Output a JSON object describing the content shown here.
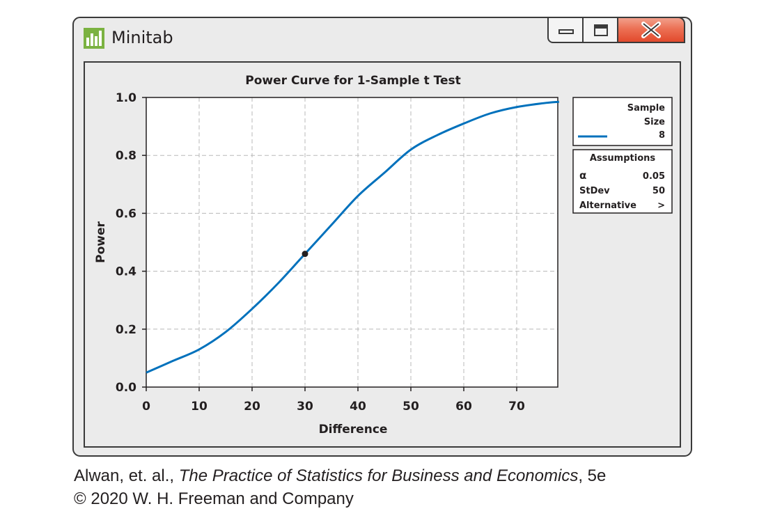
{
  "window": {
    "app_title": "Minitab",
    "controls": {
      "minimize": "minimize-icon",
      "maximize": "maximize-icon",
      "close": "close-icon"
    },
    "colors": {
      "close_button": "#e24a2d",
      "frame": "#3a3a3a",
      "background": "#ebebeb"
    }
  },
  "chart_data": {
    "type": "line",
    "title": "Power Curve for 1-Sample t Test",
    "xlabel": "Difference",
    "ylabel": "Power",
    "xlim": [
      0,
      78
    ],
    "ylim": [
      0,
      1.0
    ],
    "x_ticks": [
      0,
      10,
      20,
      30,
      40,
      50,
      60,
      70
    ],
    "y_ticks": [
      "0.0",
      "0.2",
      "0.4",
      "0.6",
      "0.8",
      "1.0"
    ],
    "grid": true,
    "series": [
      {
        "color": "#0071bc",
        "x": [
          0,
          5,
          10,
          15,
          20,
          25,
          30,
          35,
          40,
          45,
          50,
          55,
          60,
          65,
          70,
          75,
          78
        ],
        "y": [
          0.05,
          0.09,
          0.13,
          0.19,
          0.27,
          0.36,
          0.46,
          0.56,
          0.66,
          0.74,
          0.82,
          0.87,
          0.91,
          0.945,
          0.967,
          0.98,
          0.985
        ]
      }
    ],
    "highlight_point": {
      "x": 30,
      "y": 0.46
    },
    "legend": {
      "header_line1": "Sample",
      "header_line2": "Size",
      "value": "8"
    },
    "assumptions": {
      "title": "Assumptions",
      "rows": [
        {
          "label": "α",
          "value": "0.05"
        },
        {
          "label": "StDev",
          "value": "50"
        },
        {
          "label": "Alternative",
          "value": ">"
        }
      ]
    }
  },
  "caption": {
    "authors": "Alwan, et. al., ",
    "book_title": "The Practice of Statistics for Business and Economics",
    "edition": ", 5e",
    "copyright": "© 2020 W. H. Freeman and Company"
  }
}
